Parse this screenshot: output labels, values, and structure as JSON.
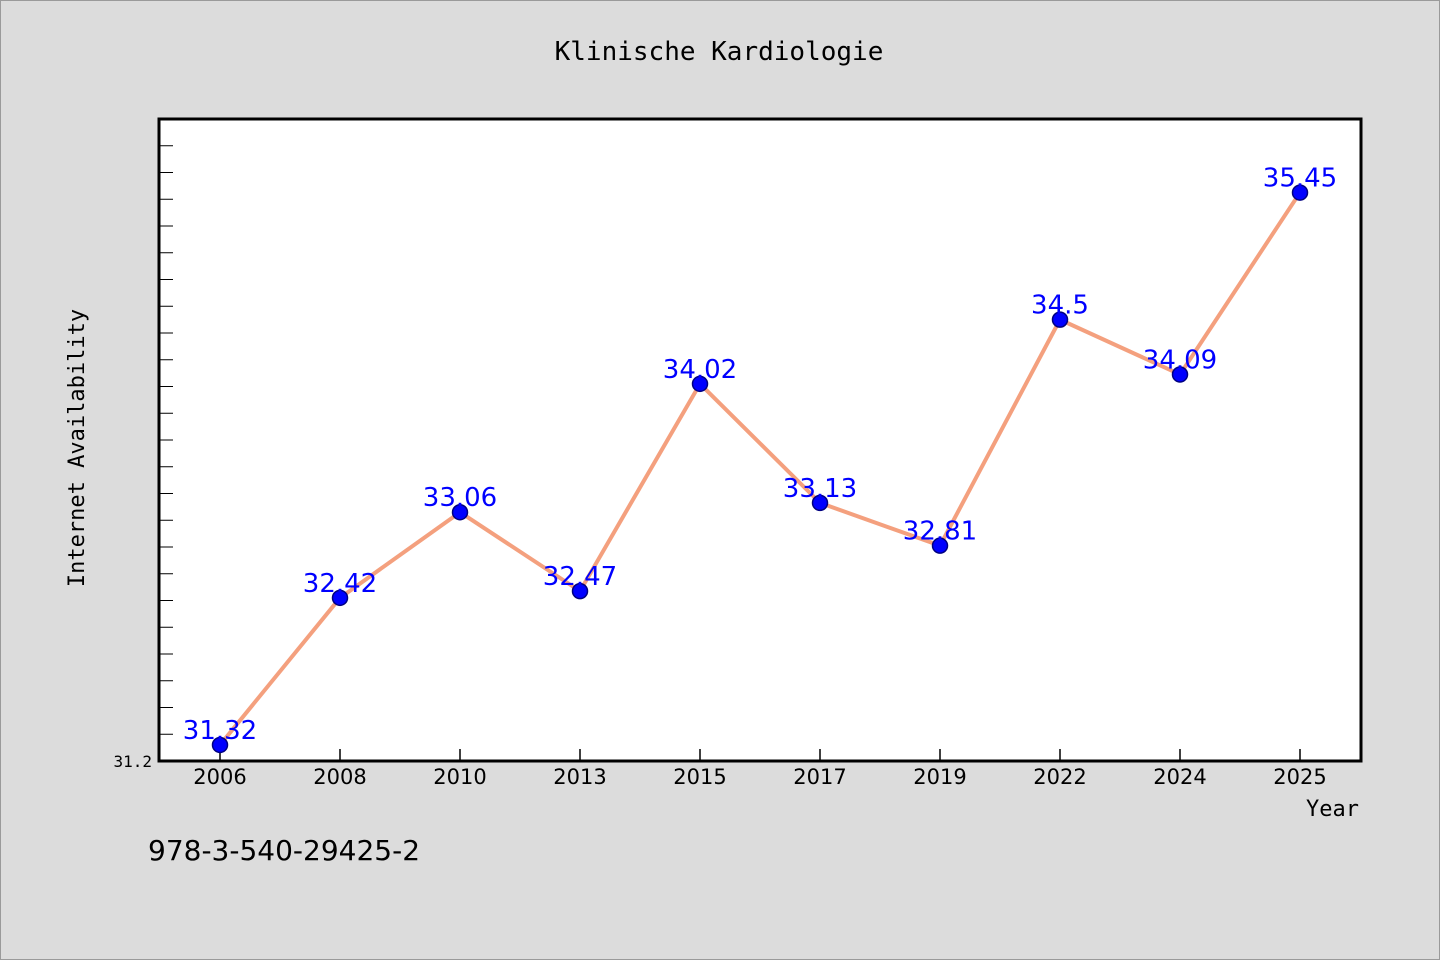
{
  "chart_data": {
    "type": "line",
    "title": "Klinische Kardiologie",
    "xlabel": "Year",
    "ylabel": "Internet Availability",
    "categories": [
      "2006",
      "2008",
      "2010",
      "2013",
      "2015",
      "2017",
      "2019",
      "2022",
      "2024",
      "2025"
    ],
    "series": [
      {
        "values": [
          31.32,
          32.42,
          33.06,
          32.47,
          34.02,
          33.13,
          32.81,
          34.5,
          34.09,
          35.45
        ],
        "data_labels": [
          "31.32",
          "32.42",
          "33.06",
          "32.47",
          "34.02",
          "33.13",
          "32.81",
          "34.5",
          "34.09",
          "35.45"
        ]
      }
    ],
    "ylim": [
      31.2,
      36.0
    ],
    "yticks_labeled": [
      "31.2"
    ],
    "grid": false,
    "legend": "none",
    "colors": {
      "line": "#f4a07e",
      "marker": "#0000ff",
      "marker_edge": "#000080",
      "data_label": "#0000ff",
      "plot_background": "#ffffff",
      "figure_background": "#dcdcdc"
    }
  },
  "footer": {
    "isbn": "978-3-540-29425-2"
  }
}
